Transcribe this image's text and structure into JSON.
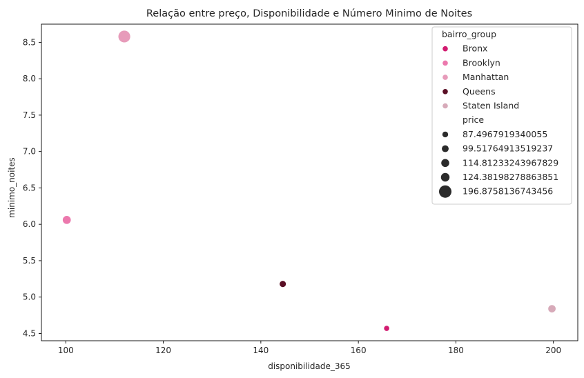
{
  "chart_data": {
    "type": "scatter",
    "title": "Relação entre preço, Disponibilidade e Número Minimo de Noites",
    "xlabel": "disponibilidade_365",
    "ylabel": "minimo_noites",
    "xlim": [
      95,
      205
    ],
    "ylim": [
      4.4,
      8.75
    ],
    "xticks": [
      100,
      120,
      140,
      160,
      180,
      200
    ],
    "xtick_labels": [
      "100",
      "120",
      "140",
      "160",
      "180",
      "200"
    ],
    "yticks": [
      4.5,
      5.0,
      5.5,
      6.0,
      6.5,
      7.0,
      7.5,
      8.0,
      8.5
    ],
    "ytick_labels": [
      "4.5",
      "5.0",
      "5.5",
      "6.0",
      "6.5",
      "7.0",
      "7.5",
      "8.0",
      "8.5"
    ],
    "grid": false,
    "legend_position": "top-right",
    "hue_title": "bairro_group",
    "size_title": "price",
    "points": [
      {
        "group": "Bronx",
        "x": 165.8,
        "y": 4.57,
        "price": 87.4967919340055
      },
      {
        "group": "Brooklyn",
        "x": 100.2,
        "y": 6.06,
        "price": 124.38198278863851
      },
      {
        "group": "Manhattan",
        "x": 112.0,
        "y": 8.58,
        "price": 196.8758136743456
      },
      {
        "group": "Queens",
        "x": 144.5,
        "y": 5.18,
        "price": 99.51764913519237
      },
      {
        "group": "Staten Island",
        "x": 199.7,
        "y": 4.84,
        "price": 114.81233243967829
      }
    ],
    "hue_legend": [
      {
        "label": "Bronx",
        "color": "#d21b70"
      },
      {
        "label": "Brooklyn",
        "color": "#ec78ad"
      },
      {
        "label": "Manhattan",
        "color": "#e79bba"
      },
      {
        "label": "Queens",
        "color": "#5a0f25"
      },
      {
        "label": "Staten Island",
        "color": "#d7aab9"
      }
    ],
    "size_legend": [
      {
        "label": "87.4967919340055",
        "value": 87.4967919340055
      },
      {
        "label": "99.51764913519237",
        "value": 99.51764913519237
      },
      {
        "label": "114.81233243967829",
        "value": 114.81233243967829
      },
      {
        "label": "124.38198278863851",
        "value": 124.38198278863851
      },
      {
        "label": "196.8758136743456",
        "value": 196.8758136743456
      }
    ]
  }
}
